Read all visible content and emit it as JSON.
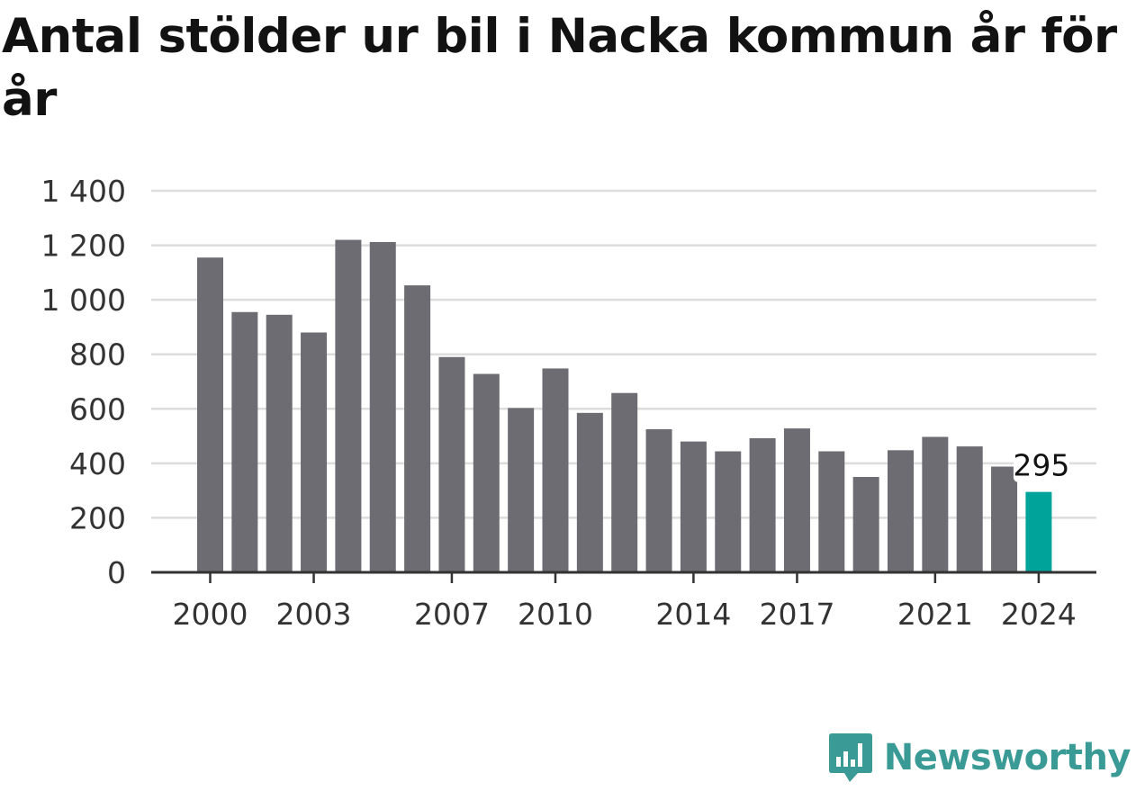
{
  "title": "Antal stölder ur bil i Nacka kommun år för år",
  "brand": {
    "name": "Newsworthy",
    "color": "#3a9a96",
    "icon": "bar-chart-speech-bubble-icon"
  },
  "colors": {
    "bar": "#6d6c72",
    "highlight": "#00a39a",
    "grid": "#dddddd",
    "axis": "#333333"
  },
  "chart_data": {
    "type": "bar",
    "title": "Antal stölder ur bil i Nacka kommun år för år",
    "xlabel": "",
    "ylabel": "",
    "categories": [
      "2000",
      "2001",
      "2002",
      "2003",
      "2004",
      "2005",
      "2006",
      "2007",
      "2008",
      "2009",
      "2010",
      "2011",
      "2012",
      "2013",
      "2014",
      "2015",
      "2016",
      "2017",
      "2018",
      "2019",
      "2020",
      "2021",
      "2022",
      "2023",
      "2024"
    ],
    "values": [
      1155,
      955,
      945,
      880,
      1220,
      1212,
      1053,
      790,
      728,
      603,
      748,
      585,
      658,
      525,
      480,
      444,
      492,
      528,
      444,
      350,
      448,
      497,
      462,
      388,
      295
    ],
    "highlight_index": 24,
    "data_labels": [
      {
        "index": 24,
        "text": "295"
      }
    ],
    "ylim": [
      0,
      1400
    ],
    "yticks": [
      0,
      200,
      400,
      600,
      800,
      1000,
      1200,
      1400
    ],
    "ytick_labels": [
      "0",
      "200",
      "400",
      "600",
      "800",
      "1 000",
      "1 200",
      "1 400"
    ],
    "xtick_labels": [
      "2000",
      "2003",
      "2007",
      "2010",
      "2014",
      "2017",
      "2021",
      "2024"
    ],
    "grid": true,
    "legend": "none"
  }
}
